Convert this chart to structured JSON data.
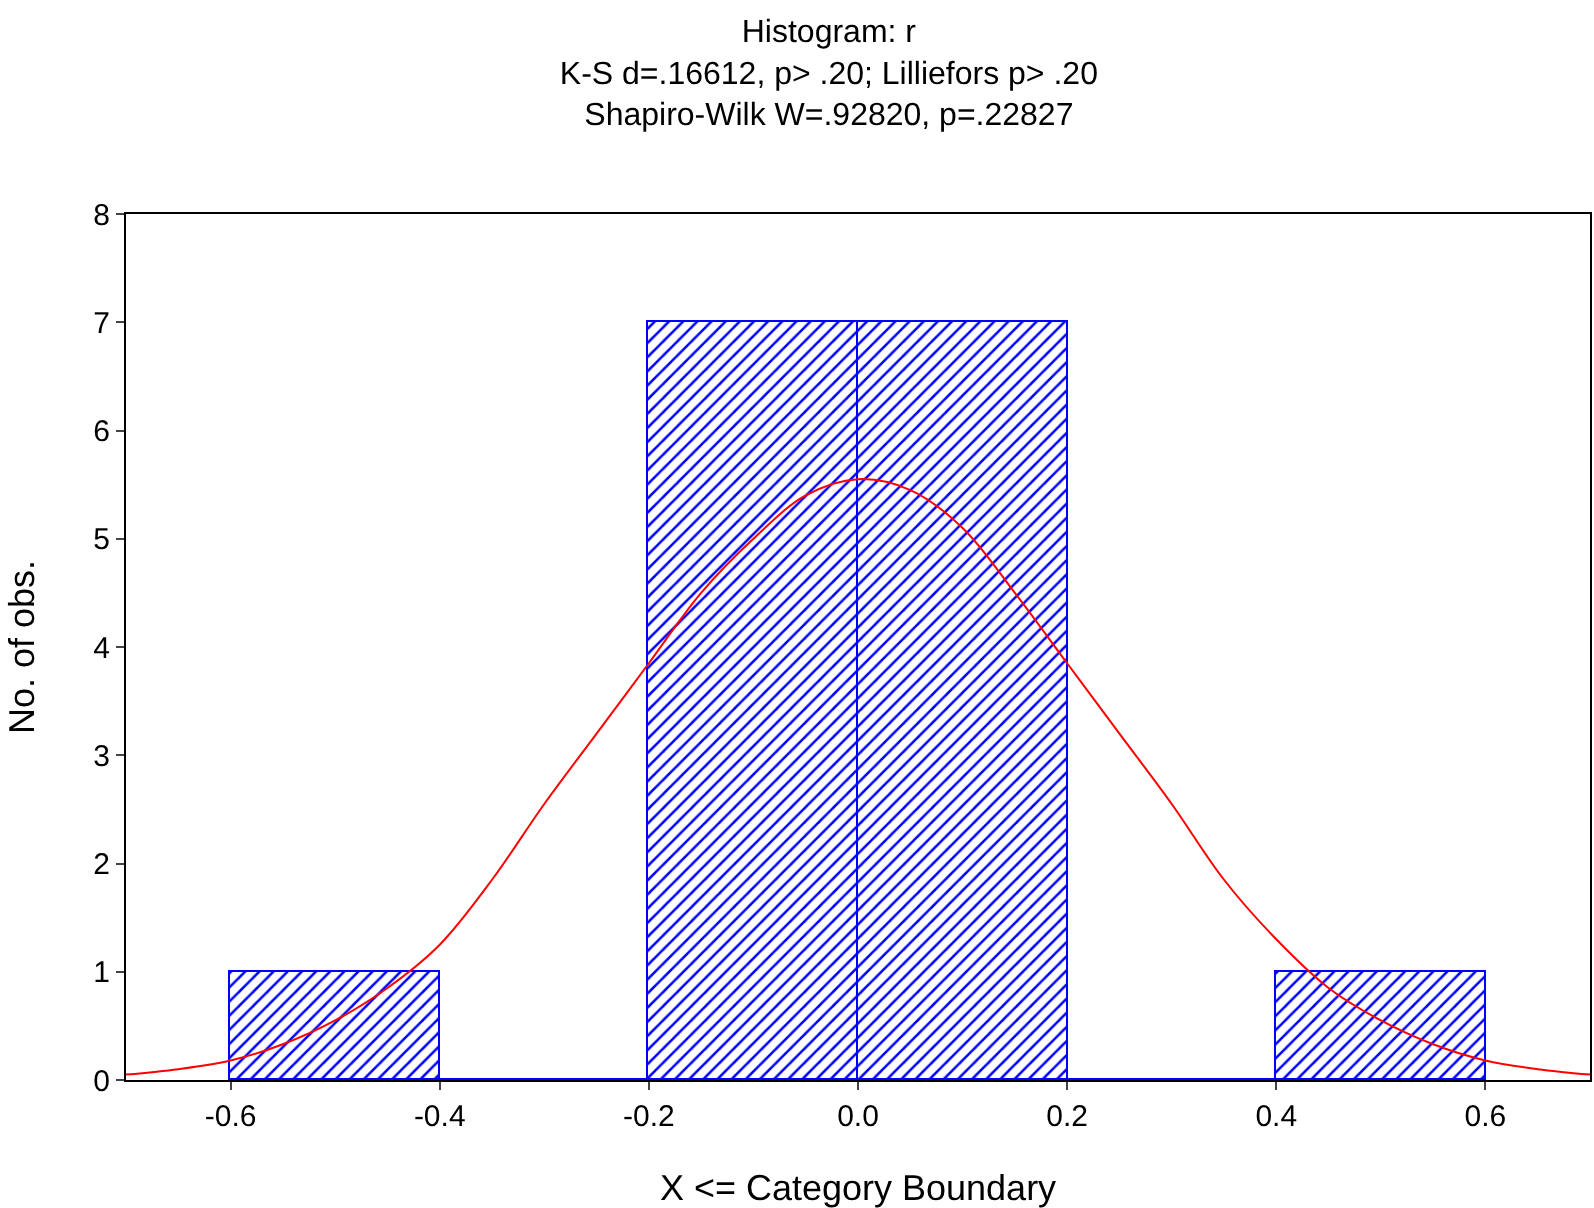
{
  "chart_data": {
    "type": "histogram",
    "title": "Histogram: r\nK-S d=.16612, p> .20; Lilliefors p> .20\nShapiro-Wilk W=.92820, p=.22827",
    "xlabel": "X <= Category Boundary",
    "ylabel": "No. of obs.",
    "bins": [
      -0.6,
      -0.4,
      -0.2,
      0,
      0.2,
      0.4,
      0.6
    ],
    "series": [
      {
        "color": "#0000ff",
        "values": [
          1,
          0,
          7,
          7,
          0,
          1
        ]
      },
      {
        "type": "line",
        "color": "#ff0000",
        "x": [
          -0.7,
          -0.65,
          -0.6,
          -0.55,
          -0.5,
          -0.45,
          -0.4,
          -0.35,
          -0.3,
          -0.25,
          -0.2,
          -0.15,
          -0.1,
          -0.05,
          0,
          0.05,
          0.1,
          0.15,
          0.2,
          0.25,
          0.3,
          0.35,
          0.4,
          0.45,
          0.5,
          0.55,
          0.6,
          0.65,
          0.7
        ],
        "values": [
          0.05,
          0.1,
          0.18,
          0.33,
          0.55,
          0.85,
          1.25,
          1.85,
          2.55,
          3.2,
          3.85,
          4.5,
          5.0,
          5.4,
          5.55,
          5.45,
          5.1,
          4.5,
          3.85,
          3.2,
          2.55,
          1.85,
          1.3,
          0.85,
          0.55,
          0.33,
          0.18,
          0.1,
          0.05
        ]
      }
    ],
    "xlim": [
      -0.7,
      0.7
    ],
    "xticks": [
      -0.6,
      -0.4,
      -0.2,
      {
        "value": 0,
        "label": "0.0"
      },
      0.2,
      0.4,
      0.6
    ],
    "ylim": [
      0,
      8
    ],
    "yticks": [
      0,
      1,
      2,
      3,
      4,
      5,
      6,
      7,
      8
    ]
  }
}
